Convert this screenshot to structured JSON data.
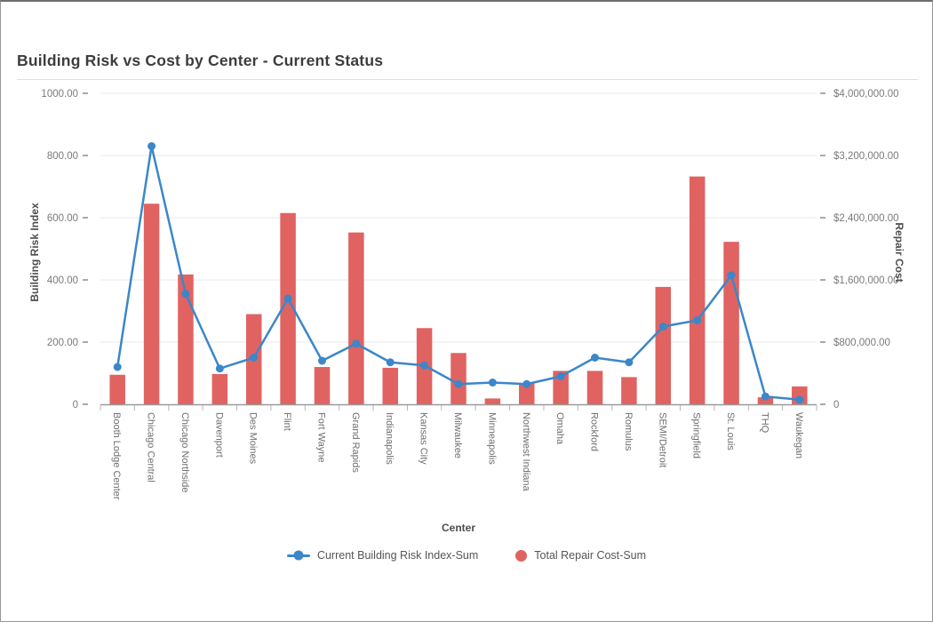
{
  "window": {
    "title": "Building Risk vs Cost by Center - Current Status"
  },
  "chart_data": {
    "type": "combo-bar-line",
    "title": "Building Risk vs Cost by Center - Current Status",
    "xlabel": "Center",
    "grid": true,
    "legend_position": "bottom",
    "categories": [
      "Booth Lodge Center",
      "Chicago Central",
      "Chicago Northside",
      "Davenport",
      "Des Moines",
      "Flint",
      "Fort Wayne",
      "Grand Rapids",
      "Indianapolis",
      "Kansas City",
      "Milwaukee",
      "Minneapolis",
      "Northwest Indiana",
      "Omaha",
      "Rockford",
      "Romulus",
      "SEMI/Detroit",
      "Springfield",
      "St. Louis",
      "THQ",
      "Waukegan"
    ],
    "series": [
      {
        "name": "Current Building Risk Index-Sum",
        "type": "line",
        "axis": "left",
        "color": "#3b87c9",
        "values": [
          120,
          830,
          355,
          115,
          150,
          340,
          140,
          195,
          135,
          125,
          65,
          70,
          65,
          90,
          150,
          135,
          250,
          270,
          415,
          25,
          15
        ]
      },
      {
        "name": "Total Repair Cost-Sum",
        "type": "bar",
        "axis": "right",
        "color": "#e06362",
        "values": [
          380000,
          2580000,
          1670000,
          390000,
          1160000,
          2460000,
          480000,
          2210000,
          470000,
          980000,
          660000,
          75000,
          270000,
          430000,
          430000,
          350000,
          1510000,
          2930000,
          2090000,
          90000,
          230000
        ]
      }
    ],
    "left_axis": {
      "title": "Building Risk Index",
      "min": 0,
      "max": 1000,
      "tick_values": [
        0,
        200,
        400,
        600,
        800,
        1000
      ],
      "tick_labels": [
        "0",
        "200.00",
        "400.00",
        "600.00",
        "800.00",
        "1000.00"
      ]
    },
    "right_axis": {
      "title": "Repair Cost",
      "min": 0,
      "max": 4000000,
      "tick_values": [
        0,
        800000,
        1600000,
        2400000,
        3200000,
        4000000
      ],
      "tick_labels": [
        "0",
        "$800,000.00",
        "$1,600,000.00",
        "$2,400,000.00",
        "$3,200,000.00",
        "$4,000,000.00"
      ]
    },
    "colors": {
      "grid": "#eaeaea",
      "axis_line": "#9a9a9a",
      "tick_text": "#7a7a7a",
      "axis_title_text": "#4d4d4d",
      "category_text": "#6e6e6e"
    }
  }
}
